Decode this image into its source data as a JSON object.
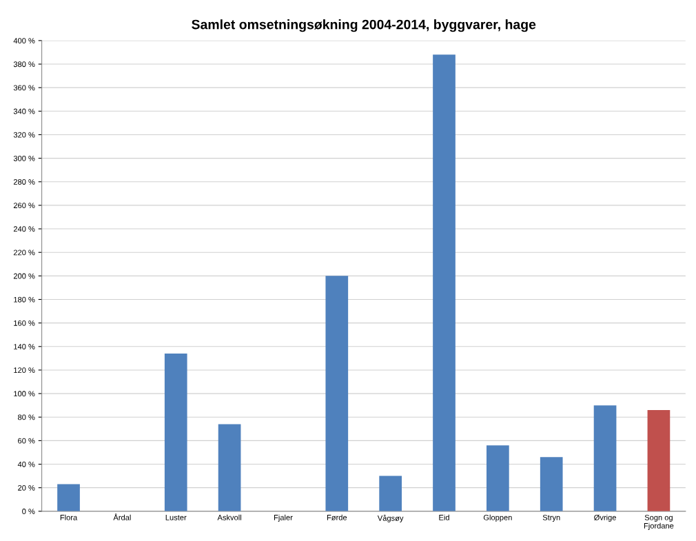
{
  "chart_data": {
    "type": "bar",
    "title": "Samlet omsetningsøkning 2004-2014, byggvarer, hage",
    "categories": [
      "Flora",
      "Årdal",
      "Luster",
      "Askvoll",
      "Fjaler",
      "Førde",
      "Vågsøy",
      "Eid",
      "Gloppen",
      "Stryn",
      "Øvrige",
      "Sogn og\nFjordane"
    ],
    "values": [
      23,
      0,
      134,
      74,
      0,
      200,
      30,
      388,
      56,
      46,
      90,
      86
    ],
    "colors": [
      "#4f81bd",
      "#4f81bd",
      "#4f81bd",
      "#4f81bd",
      "#4f81bd",
      "#4f81bd",
      "#4f81bd",
      "#4f81bd",
      "#4f81bd",
      "#4f81bd",
      "#4f81bd",
      "#c0504d"
    ],
    "ylim": [
      0,
      400
    ],
    "yticks": [
      {
        "value": 0,
        "label": "0 %"
      },
      {
        "value": 20,
        "label": "20 %"
      },
      {
        "value": 40,
        "label": "40 %"
      },
      {
        "value": 60,
        "label": "60 %"
      },
      {
        "value": 80,
        "label": "80 %"
      },
      {
        "value": 100,
        "label": "100 %"
      },
      {
        "value": 120,
        "label": "120 %"
      },
      {
        "value": 140,
        "label": "140 %"
      },
      {
        "value": 160,
        "label": "160 %"
      },
      {
        "value": 180,
        "label": "180 %"
      },
      {
        "value": 200,
        "label": "200 %"
      },
      {
        "value": 220,
        "label": "220 %"
      },
      {
        "value": 240,
        "label": "240 %"
      },
      {
        "value": 260,
        "label": "260 %"
      },
      {
        "value": 280,
        "label": "280 %"
      },
      {
        "value": 300,
        "label": "300 %"
      },
      {
        "value": 320,
        "label": "320 %"
      },
      {
        "value": 340,
        "label": "340 %"
      },
      {
        "value": 360,
        "label": "360 %"
      },
      {
        "value": 380,
        "label": "380 %"
      },
      {
        "value": 400,
        "label": "400 %"
      }
    ],
    "grid": "y"
  }
}
